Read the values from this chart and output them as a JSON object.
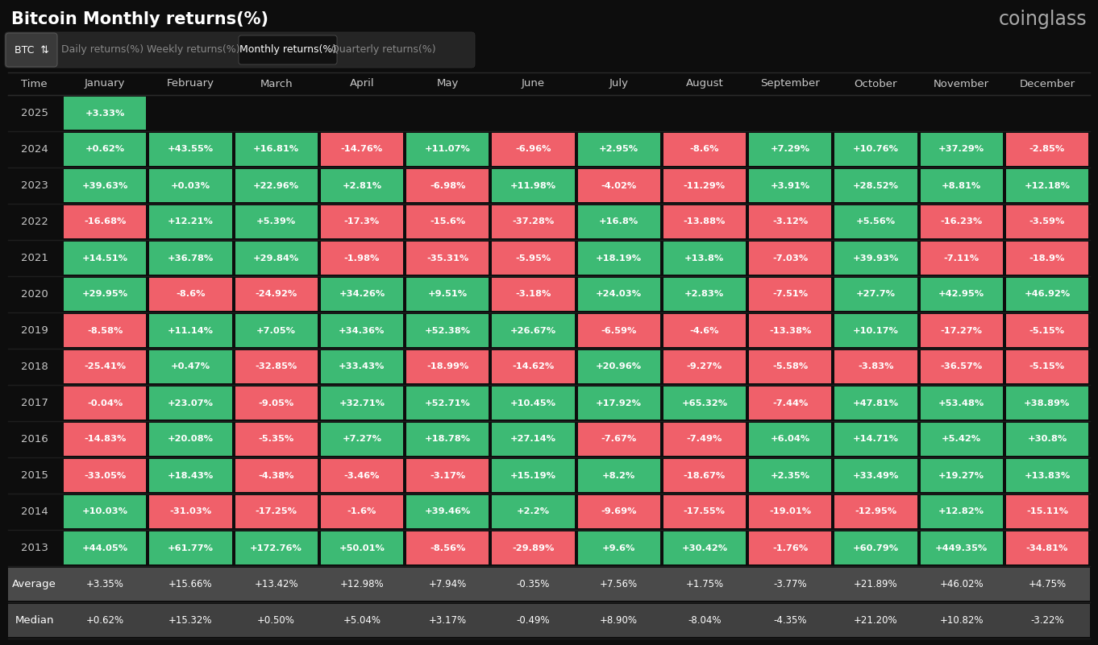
{
  "title": "Bitcoin Monthly returns(%)",
  "source": "coinglass",
  "background_color": "#0d0d0d",
  "green_color": "#3dba74",
  "red_color": "#f0606a",
  "gray_color_avg": "#4a4a4a",
  "gray_color_med": "#404040",
  "text_color": "#ffffff",
  "header_text_color": "#c8c8c8",
  "months": [
    "January",
    "February",
    "March",
    "April",
    "May",
    "June",
    "July",
    "August",
    "September",
    "October",
    "November",
    "December"
  ],
  "years": [
    "2025",
    "2024",
    "2023",
    "2022",
    "2021",
    "2020",
    "2019",
    "2018",
    "2017",
    "2016",
    "2015",
    "2014",
    "2013"
  ],
  "data": {
    "2025": [
      "+3.33%",
      null,
      null,
      null,
      null,
      null,
      null,
      null,
      null,
      null,
      null,
      null
    ],
    "2024": [
      "+0.62%",
      "+43.55%",
      "+16.81%",
      "-14.76%",
      "+11.07%",
      "-6.96%",
      "+2.95%",
      "-8.6%",
      "+7.29%",
      "+10.76%",
      "+37.29%",
      "-2.85%"
    ],
    "2023": [
      "+39.63%",
      "+0.03%",
      "+22.96%",
      "+2.81%",
      "-6.98%",
      "+11.98%",
      "-4.02%",
      "-11.29%",
      "+3.91%",
      "+28.52%",
      "+8.81%",
      "+12.18%"
    ],
    "2022": [
      "-16.68%",
      "+12.21%",
      "+5.39%",
      "-17.3%",
      "-15.6%",
      "-37.28%",
      "+16.8%",
      "-13.88%",
      "-3.12%",
      "+5.56%",
      "-16.23%",
      "-3.59%"
    ],
    "2021": [
      "+14.51%",
      "+36.78%",
      "+29.84%",
      "-1.98%",
      "-35.31%",
      "-5.95%",
      "+18.19%",
      "+13.8%",
      "-7.03%",
      "+39.93%",
      "-7.11%",
      "-18.9%"
    ],
    "2020": [
      "+29.95%",
      "-8.6%",
      "-24.92%",
      "+34.26%",
      "+9.51%",
      "-3.18%",
      "+24.03%",
      "+2.83%",
      "-7.51%",
      "+27.7%",
      "+42.95%",
      "+46.92%"
    ],
    "2019": [
      "-8.58%",
      "+11.14%",
      "+7.05%",
      "+34.36%",
      "+52.38%",
      "+26.67%",
      "-6.59%",
      "-4.6%",
      "-13.38%",
      "+10.17%",
      "-17.27%",
      "-5.15%"
    ],
    "2018": [
      "-25.41%",
      "+0.47%",
      "-32.85%",
      "+33.43%",
      "-18.99%",
      "-14.62%",
      "+20.96%",
      "-9.27%",
      "-5.58%",
      "-3.83%",
      "-36.57%",
      "-5.15%"
    ],
    "2017": [
      "-0.04%",
      "+23.07%",
      "-9.05%",
      "+32.71%",
      "+52.71%",
      "+10.45%",
      "+17.92%",
      "+65.32%",
      "-7.44%",
      "+47.81%",
      "+53.48%",
      "+38.89%"
    ],
    "2016": [
      "-14.83%",
      "+20.08%",
      "-5.35%",
      "+7.27%",
      "+18.78%",
      "+27.14%",
      "-7.67%",
      "-7.49%",
      "+6.04%",
      "+14.71%",
      "+5.42%",
      "+30.8%"
    ],
    "2015": [
      "-33.05%",
      "+18.43%",
      "-4.38%",
      "-3.46%",
      "-3.17%",
      "+15.19%",
      "+8.2%",
      "-18.67%",
      "+2.35%",
      "+33.49%",
      "+19.27%",
      "+13.83%"
    ],
    "2014": [
      "+10.03%",
      "-31.03%",
      "-17.25%",
      "-1.6%",
      "+39.46%",
      "+2.2%",
      "-9.69%",
      "-17.55%",
      "-19.01%",
      "-12.95%",
      "+12.82%",
      "-15.11%"
    ],
    "2013": [
      "+44.05%",
      "+61.77%",
      "+172.76%",
      "+50.01%",
      "-8.56%",
      "-29.89%",
      "+9.6%",
      "+30.42%",
      "-1.76%",
      "+60.79%",
      "+449.35%",
      "-34.81%"
    ]
  },
  "average": [
    "+3.35%",
    "+15.66%",
    "+13.42%",
    "+12.98%",
    "+7.94%",
    "-0.35%",
    "+7.56%",
    "+1.75%",
    "-3.77%",
    "+21.89%",
    "+46.02%",
    "+4.75%"
  ],
  "median": [
    "+0.62%",
    "+15.32%",
    "+0.50%",
    "+5.04%",
    "+3.17%",
    "-0.49%",
    "+8.90%",
    "-8.04%",
    "-4.35%",
    "+21.20%",
    "+10.82%",
    "-3.22%"
  ]
}
